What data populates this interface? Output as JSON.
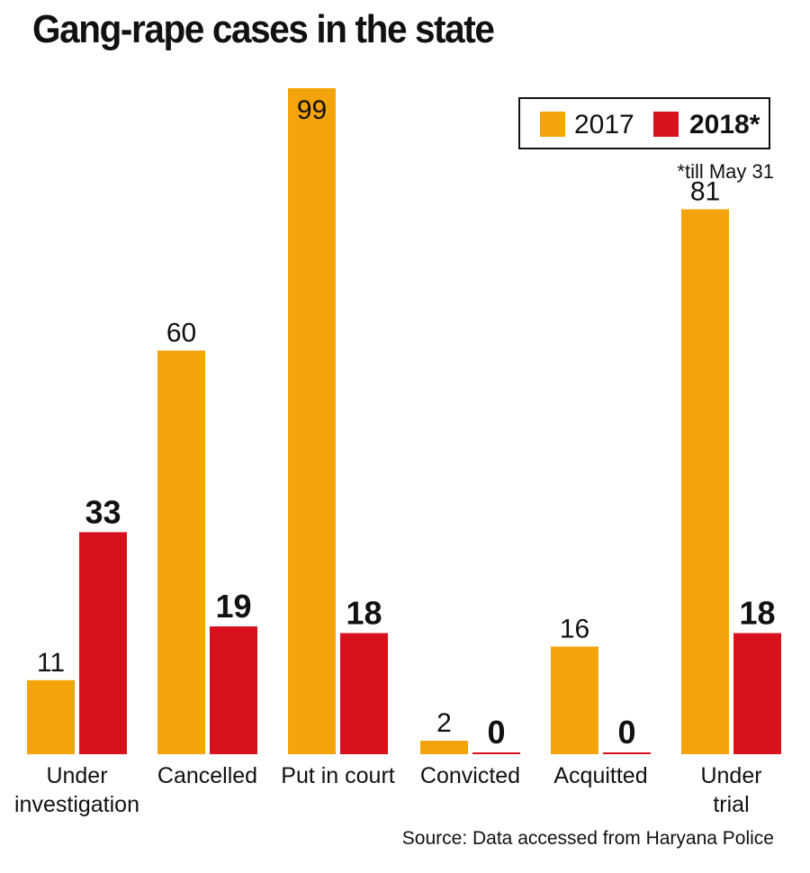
{
  "title": "Gang-rape cases in the state",
  "legend": {
    "items": [
      {
        "label": "2017",
        "color": "#f5a30a"
      },
      {
        "label": "2018*",
        "color": "#d8121c"
      }
    ]
  },
  "footnote": "*till May 31",
  "source": "Source: Data accessed from Haryana Police",
  "chart_data": {
    "type": "bar",
    "title": "Gang-rape cases in the state",
    "categories": [
      "Under investigation",
      "Cancelled",
      "Put in court",
      "Convicted",
      "Acquitted",
      "Under trial"
    ],
    "category_lines": [
      [
        "Under",
        "investigation"
      ],
      [
        "Cancelled"
      ],
      [
        "Put in court"
      ],
      [
        "Convicted"
      ],
      [
        "Acquitted"
      ],
      [
        "Under",
        "trial"
      ]
    ],
    "series": [
      {
        "name": "2017",
        "color": "#f5a30a",
        "values": [
          11,
          60,
          99,
          2,
          16,
          81
        ]
      },
      {
        "name": "2018*",
        "color": "#d8121c",
        "values": [
          33,
          19,
          18,
          0,
          0,
          18
        ]
      }
    ],
    "ylim": [
      0,
      99
    ],
    "grid": false,
    "legend_position": "top-right"
  }
}
